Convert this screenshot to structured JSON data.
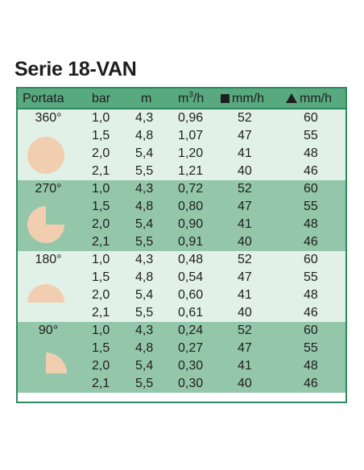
{
  "title": "Serie 18-VAN",
  "colors": {
    "border": "#2c8a5e",
    "header": "#58a97f",
    "light_band": "#e2f1e8",
    "dark_band": "#94c7a9",
    "pattern_fill": "#f2ceb0"
  },
  "header": {
    "portata": "Portata",
    "bar": "bar",
    "m": "m",
    "m3h_base": "m",
    "m3h_sup": "3",
    "m3h_tail": "/h",
    "square_mmh": "mm/h",
    "triangle_mmh": "mm/h"
  },
  "groups": [
    {
      "angle": "360°",
      "pattern_icon": "full-circle-icon",
      "rows": [
        {
          "bar": "1,0",
          "m": "4,3",
          "m3h": "0,96",
          "square": "52",
          "triangle": "60"
        },
        {
          "bar": "1,5",
          "m": "4,8",
          "m3h": "1,07",
          "square": "47",
          "triangle": "55"
        },
        {
          "bar": "2,0",
          "m": "5,4",
          "m3h": "1,20",
          "square": "41",
          "triangle": "48"
        },
        {
          "bar": "2,1",
          "m": "5,5",
          "m3h": "1,21",
          "square": "40",
          "triangle": "46"
        }
      ]
    },
    {
      "angle": "270°",
      "pattern_icon": "three-quarter-circle-icon",
      "rows": [
        {
          "bar": "1,0",
          "m": "4,3",
          "m3h": "0,72",
          "square": "52",
          "triangle": "60"
        },
        {
          "bar": "1,5",
          "m": "4,8",
          "m3h": "0,80",
          "square": "47",
          "triangle": "55"
        },
        {
          "bar": "2,0",
          "m": "5,4",
          "m3h": "0,90",
          "square": "41",
          "triangle": "48"
        },
        {
          "bar": "2,1",
          "m": "5,5",
          "m3h": "0,91",
          "square": "40",
          "triangle": "46"
        }
      ]
    },
    {
      "angle": "180°",
      "pattern_icon": "half-circle-icon",
      "rows": [
        {
          "bar": "1,0",
          "m": "4,3",
          "m3h": "0,48",
          "square": "52",
          "triangle": "60"
        },
        {
          "bar": "1,5",
          "m": "4,8",
          "m3h": "0,54",
          "square": "47",
          "triangle": "55"
        },
        {
          "bar": "2,0",
          "m": "5,4",
          "m3h": "0,60",
          "square": "41",
          "triangle": "48"
        },
        {
          "bar": "2,1",
          "m": "5,5",
          "m3h": "0,61",
          "square": "40",
          "triangle": "46"
        }
      ]
    },
    {
      "angle": "90°",
      "pattern_icon": "quarter-circle-icon",
      "rows": [
        {
          "bar": "1,0",
          "m": "4,3",
          "m3h": "0,24",
          "square": "52",
          "triangle": "60"
        },
        {
          "bar": "1,5",
          "m": "4,8",
          "m3h": "0,27",
          "square": "47",
          "triangle": "55"
        },
        {
          "bar": "2,0",
          "m": "5,4",
          "m3h": "0,30",
          "square": "41",
          "triangle": "48"
        },
        {
          "bar": "2,1",
          "m": "5,5",
          "m3h": "0,30",
          "square": "40",
          "triangle": "46"
        }
      ]
    }
  ]
}
